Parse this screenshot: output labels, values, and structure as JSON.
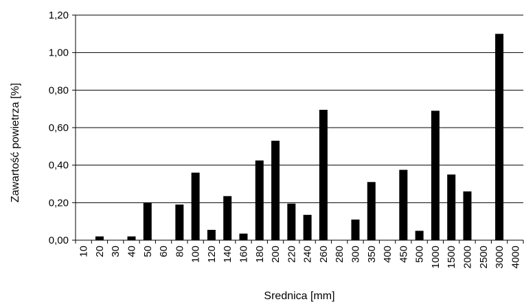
{
  "chart_data": {
    "type": "bar",
    "title": "",
    "xlabel": "Srednica [mm]",
    "ylabel": "Zawartość powietrza [%]",
    "ylim": [
      0,
      1.2
    ],
    "yticks": [
      "0,00",
      "0,20",
      "0,40",
      "0,60",
      "0,80",
      "1,00",
      "1,20"
    ],
    "grid": true,
    "legend": "none",
    "bar_color": "#000000",
    "categories": [
      "10",
      "20",
      "30",
      "40",
      "50",
      "60",
      "80",
      "100",
      "120",
      "140",
      "160",
      "180",
      "200",
      "220",
      "240",
      "260",
      "280",
      "300",
      "350",
      "400",
      "450",
      "500",
      "1000",
      "1500",
      "2000",
      "2500",
      "3000",
      "4000"
    ],
    "values": [
      0,
      0.02,
      0,
      0.02,
      0.2,
      0,
      0.19,
      0.36,
      0.055,
      0.235,
      0.035,
      0.425,
      0.53,
      0.195,
      0.135,
      0.695,
      0,
      0.11,
      0.31,
      0,
      0.375,
      0.05,
      0.69,
      0.35,
      0.26,
      0,
      1.1,
      0
    ]
  }
}
